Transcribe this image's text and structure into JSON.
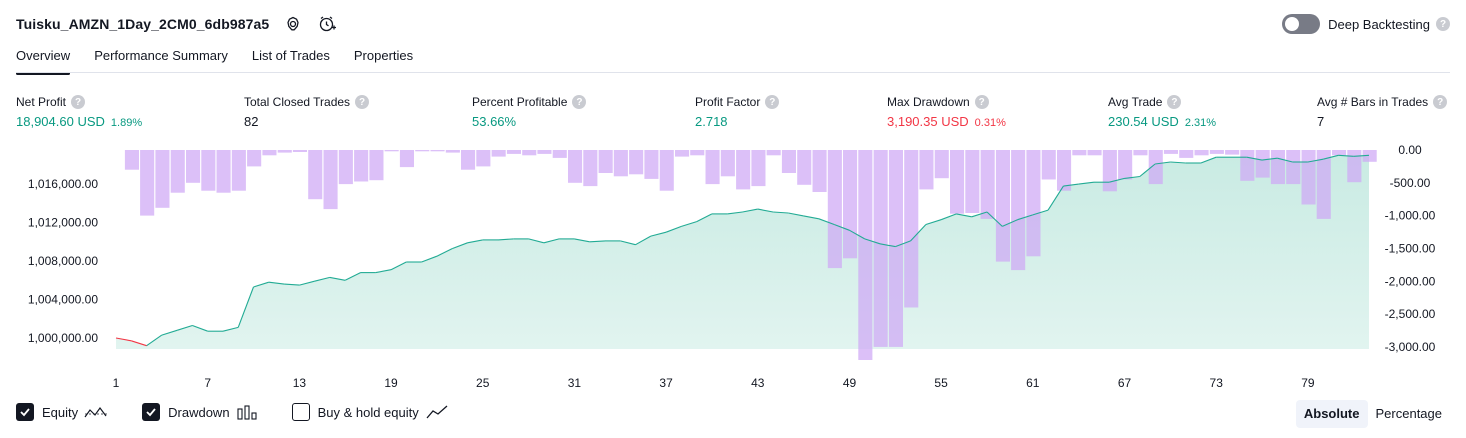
{
  "header": {
    "strategy_title": "Tuisku_AMZN_1Day_2CM0_6db987a5",
    "deep_backtesting_label": "Deep Backtesting",
    "help_glyph": "?"
  },
  "tabs": [
    {
      "label": "Overview",
      "active": true
    },
    {
      "label": "Performance Summary",
      "active": false
    },
    {
      "label": "List of Trades",
      "active": false
    },
    {
      "label": "Properties",
      "active": false
    }
  ],
  "metrics": [
    {
      "label": "Net Profit",
      "value": "18,904.60 USD",
      "pct": "1.89%",
      "color": "green"
    },
    {
      "label": "Total Closed Trades",
      "value": "82",
      "pct": "",
      "color": "dark"
    },
    {
      "label": "Percent Profitable",
      "value": "53.66%",
      "pct": "",
      "color": "green"
    },
    {
      "label": "Profit Factor",
      "value": "2.718",
      "pct": "",
      "color": "green"
    },
    {
      "label": "Max Drawdown",
      "value": "3,190.35 USD",
      "pct": "0.31%",
      "color": "red"
    },
    {
      "label": "Avg Trade",
      "value": "230.54 USD",
      "pct": "2.31%",
      "color": "green"
    },
    {
      "label": "Avg # Bars in Trades",
      "value": "7",
      "pct": "",
      "color": "dark"
    }
  ],
  "legend": {
    "equity_label": "Equity",
    "drawdown_label": "Drawdown",
    "buyhold_label": "Buy & hold equity",
    "equity_checked": true,
    "drawdown_checked": true,
    "buyhold_checked": false
  },
  "mode": {
    "absolute_label": "Absolute",
    "percentage_label": "Percentage",
    "selected": "Absolute"
  },
  "colors": {
    "equity_line": "#22ab94",
    "equity_fill": "#c9ebe3",
    "equity_negative": "#f23645",
    "drawdown_bar": "#cfa8f5",
    "green": "#089981",
    "red": "#f23645"
  },
  "chart_data": {
    "type": "area",
    "x_ticks": [
      1,
      7,
      13,
      19,
      25,
      31,
      37,
      43,
      49,
      55,
      61,
      67,
      73,
      79
    ],
    "left_axis": {
      "ticks": [
        "1,000,000.00",
        "1,004,000.00",
        "1,008,000.00",
        "1,012,000.00",
        "1,016,000.00"
      ],
      "tick_values": [
        1000000,
        1004000,
        1008000,
        1012000,
        1016000
      ],
      "ylim": [
        998800,
        1019500
      ]
    },
    "right_axis": {
      "ticks": [
        "0.00",
        "-500.00",
        "-1,000.00",
        "-1,500.00",
        "-2,000.00",
        "-2,500.00",
        "-3,000.00"
      ],
      "tick_values": [
        0,
        -500,
        -1000,
        -1500,
        -2000,
        -2500,
        -3000
      ],
      "ylim": [
        -3200,
        0
      ]
    },
    "series": [
      {
        "name": "Equity",
        "x": [
          1,
          2,
          3,
          4,
          5,
          6,
          7,
          8,
          9,
          10,
          11,
          12,
          13,
          14,
          15,
          16,
          17,
          18,
          19,
          20,
          21,
          22,
          23,
          24,
          25,
          26,
          27,
          28,
          29,
          30,
          31,
          32,
          33,
          34,
          35,
          36,
          37,
          38,
          39,
          40,
          41,
          42,
          43,
          44,
          45,
          46,
          47,
          48,
          49,
          50,
          51,
          52,
          53,
          54,
          55,
          56,
          57,
          58,
          59,
          60,
          61,
          62,
          63,
          64,
          65,
          66,
          67,
          68,
          69,
          70,
          71,
          72,
          73,
          74,
          75,
          76,
          77,
          78,
          79,
          80,
          81,
          82,
          83
        ],
        "values": [
          1000000,
          999700,
          999200,
          1000300,
          1000800,
          1001300,
          1000700,
          1000700,
          1001100,
          1005300,
          1005800,
          1005600,
          1005500,
          1005900,
          1006300,
          1006000,
          1006800,
          1006800,
          1007100,
          1007900,
          1007900,
          1008500,
          1009300,
          1009900,
          1010200,
          1010200,
          1010300,
          1010300,
          1009900,
          1010300,
          1010300,
          1010000,
          1010100,
          1010100,
          1009700,
          1010600,
          1011000,
          1011600,
          1012100,
          1012900,
          1012900,
          1013100,
          1013400,
          1013100,
          1013000,
          1012700,
          1012400,
          1011800,
          1011200,
          1010300,
          1009800,
          1009500,
          1010100,
          1011800,
          1012300,
          1012900,
          1012600,
          1013100,
          1011600,
          1012300,
          1012800,
          1013300,
          1015800,
          1016000,
          1016200,
          1016200,
          1016600,
          1016800,
          1018100,
          1018300,
          1018200,
          1018200,
          1018800,
          1018800,
          1018800,
          1018500,
          1018700,
          1018300,
          1018300,
          1018600,
          1019000,
          1018900,
          1019000
        ]
      },
      {
        "name": "Drawdown",
        "x": [
          1,
          2,
          3,
          4,
          5,
          6,
          7,
          8,
          9,
          10,
          11,
          12,
          13,
          14,
          15,
          16,
          17,
          18,
          19,
          20,
          21,
          22,
          23,
          24,
          25,
          26,
          27,
          28,
          29,
          30,
          31,
          32,
          33,
          34,
          35,
          36,
          37,
          38,
          39,
          40,
          41,
          42,
          43,
          44,
          45,
          46,
          47,
          48,
          49,
          50,
          51,
          52,
          53,
          54,
          55,
          56,
          57,
          58,
          59,
          60,
          61,
          62,
          63,
          64,
          65,
          66,
          67,
          68,
          69,
          70,
          71,
          72,
          73,
          74,
          75,
          76,
          77,
          78,
          79,
          80,
          81,
          82,
          83
        ],
        "values": [
          0,
          -300,
          -1000,
          -880,
          -650,
          -500,
          -620,
          -650,
          -620,
          -250,
          -80,
          -40,
          -30,
          -750,
          -900,
          -520,
          -480,
          -460,
          -20,
          -260,
          -20,
          -20,
          -40,
          -300,
          -250,
          -100,
          -60,
          -80,
          -60,
          -120,
          -500,
          -550,
          -350,
          -400,
          -370,
          -440,
          -620,
          -100,
          -80,
          -520,
          -400,
          -600,
          -550,
          -80,
          -350,
          -530,
          -640,
          -1800,
          -1650,
          -3200,
          -3000,
          -3000,
          -2400,
          -600,
          -430,
          -970,
          -960,
          -1050,
          -1700,
          -1830,
          -1620,
          -450,
          -620,
          -80,
          -80,
          -630,
          -450,
          -80,
          -520,
          -60,
          -120,
          -80,
          -60,
          -70,
          -470,
          -420,
          -520,
          -520,
          -830,
          -1050,
          -80,
          -490,
          -180
        ]
      }
    ],
    "ylabel": "",
    "xlabel": "",
    "grid": false,
    "legend": "bottom-left"
  }
}
